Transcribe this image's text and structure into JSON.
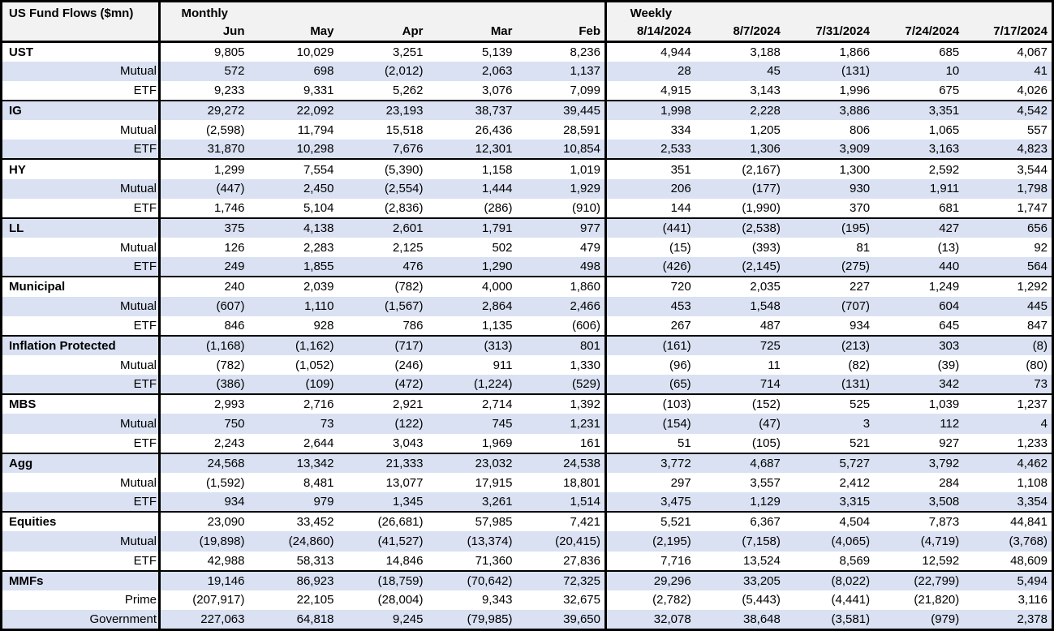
{
  "table": {
    "title": "US Fund Flows ($mn)",
    "monthly_label": "Monthly",
    "weekly_label": "Weekly",
    "monthly_columns": [
      "Jun",
      "May",
      "Apr",
      "Mar",
      "Feb"
    ],
    "weekly_columns": [
      "8/14/2024",
      "8/7/2024",
      "7/31/2024",
      "7/24/2024",
      "7/17/2024"
    ],
    "sections": [
      {
        "rows": [
          {
            "label": "UST",
            "monthly": [
              "9,805",
              "10,029",
              "3,251",
              "5,139",
              "8,236"
            ],
            "weekly": [
              "4,944",
              "3,188",
              "1,866",
              "685",
              "4,067"
            ]
          },
          {
            "label": "Mutual",
            "monthly": [
              "572",
              "698",
              "(2,012)",
              "2,063",
              "1,137"
            ],
            "weekly": [
              "28",
              "45",
              "(131)",
              "10",
              "41"
            ]
          },
          {
            "label": "ETF",
            "monthly": [
              "9,233",
              "9,331",
              "5,262",
              "3,076",
              "7,099"
            ],
            "weekly": [
              "4,915",
              "3,143",
              "1,996",
              "675",
              "4,026"
            ]
          }
        ]
      },
      {
        "rows": [
          {
            "label": "IG",
            "monthly": [
              "29,272",
              "22,092",
              "23,193",
              "38,737",
              "39,445"
            ],
            "weekly": [
              "1,998",
              "2,228",
              "3,886",
              "3,351",
              "4,542"
            ]
          },
          {
            "label": "Mutual",
            "monthly": [
              "(2,598)",
              "11,794",
              "15,518",
              "26,436",
              "28,591"
            ],
            "weekly": [
              "334",
              "1,205",
              "806",
              "1,065",
              "557"
            ]
          },
          {
            "label": "ETF",
            "monthly": [
              "31,870",
              "10,298",
              "7,676",
              "12,301",
              "10,854"
            ],
            "weekly": [
              "2,533",
              "1,306",
              "3,909",
              "3,163",
              "4,823"
            ]
          }
        ]
      },
      {
        "rows": [
          {
            "label": "HY",
            "monthly": [
              "1,299",
              "7,554",
              "(5,390)",
              "1,158",
              "1,019"
            ],
            "weekly": [
              "351",
              "(2,167)",
              "1,300",
              "2,592",
              "3,544"
            ]
          },
          {
            "label": "Mutual",
            "monthly": [
              "(447)",
              "2,450",
              "(2,554)",
              "1,444",
              "1,929"
            ],
            "weekly": [
              "206",
              "(177)",
              "930",
              "1,911",
              "1,798"
            ]
          },
          {
            "label": "ETF",
            "monthly": [
              "1,746",
              "5,104",
              "(2,836)",
              "(286)",
              "(910)"
            ],
            "weekly": [
              "144",
              "(1,990)",
              "370",
              "681",
              "1,747"
            ]
          }
        ]
      },
      {
        "rows": [
          {
            "label": "LL",
            "monthly": [
              "375",
              "4,138",
              "2,601",
              "1,791",
              "977"
            ],
            "weekly": [
              "(441)",
              "(2,538)",
              "(195)",
              "427",
              "656"
            ]
          },
          {
            "label": "Mutual",
            "monthly": [
              "126",
              "2,283",
              "2,125",
              "502",
              "479"
            ],
            "weekly": [
              "(15)",
              "(393)",
              "81",
              "(13)",
              "92"
            ]
          },
          {
            "label": "ETF",
            "monthly": [
              "249",
              "1,855",
              "476",
              "1,290",
              "498"
            ],
            "weekly": [
              "(426)",
              "(2,145)",
              "(275)",
              "440",
              "564"
            ]
          }
        ]
      },
      {
        "rows": [
          {
            "label": "Municipal",
            "monthly": [
              "240",
              "2,039",
              "(782)",
              "4,000",
              "1,860"
            ],
            "weekly": [
              "720",
              "2,035",
              "227",
              "1,249",
              "1,292"
            ]
          },
          {
            "label": "Mutual",
            "monthly": [
              "(607)",
              "1,110",
              "(1,567)",
              "2,864",
              "2,466"
            ],
            "weekly": [
              "453",
              "1,548",
              "(707)",
              "604",
              "445"
            ]
          },
          {
            "label": "ETF",
            "monthly": [
              "846",
              "928",
              "786",
              "1,135",
              "(606)"
            ],
            "weekly": [
              "267",
              "487",
              "934",
              "645",
              "847"
            ]
          }
        ]
      },
      {
        "rows": [
          {
            "label": "Inflation Protected",
            "monthly": [
              "(1,168)",
              "(1,162)",
              "(717)",
              "(313)",
              "801"
            ],
            "weekly": [
              "(161)",
              "725",
              "(213)",
              "303",
              "(8)"
            ]
          },
          {
            "label": "Mutual",
            "monthly": [
              "(782)",
              "(1,052)",
              "(246)",
              "911",
              "1,330"
            ],
            "weekly": [
              "(96)",
              "11",
              "(82)",
              "(39)",
              "(80)"
            ]
          },
          {
            "label": "ETF",
            "monthly": [
              "(386)",
              "(109)",
              "(472)",
              "(1,224)",
              "(529)"
            ],
            "weekly": [
              "(65)",
              "714",
              "(131)",
              "342",
              "73"
            ]
          }
        ]
      },
      {
        "rows": [
          {
            "label": "MBS",
            "monthly": [
              "2,993",
              "2,716",
              "2,921",
              "2,714",
              "1,392"
            ],
            "weekly": [
              "(103)",
              "(152)",
              "525",
              "1,039",
              "1,237"
            ]
          },
          {
            "label": "Mutual",
            "monthly": [
              "750",
              "73",
              "(122)",
              "745",
              "1,231"
            ],
            "weekly": [
              "(154)",
              "(47)",
              "3",
              "112",
              "4"
            ]
          },
          {
            "label": "ETF",
            "monthly": [
              "2,243",
              "2,644",
              "3,043",
              "1,969",
              "161"
            ],
            "weekly": [
              "51",
              "(105)",
              "521",
              "927",
              "1,233"
            ]
          }
        ]
      },
      {
        "rows": [
          {
            "label": "Agg",
            "monthly": [
              "24,568",
              "13,342",
              "21,333",
              "23,032",
              "24,538"
            ],
            "weekly": [
              "3,772",
              "4,687",
              "5,727",
              "3,792",
              "4,462"
            ]
          },
          {
            "label": "Mutual",
            "monthly": [
              "(1,592)",
              "8,481",
              "13,077",
              "17,915",
              "18,801"
            ],
            "weekly": [
              "297",
              "3,557",
              "2,412",
              "284",
              "1,108"
            ]
          },
          {
            "label": "ETF",
            "monthly": [
              "934",
              "979",
              "1,345",
              "3,261",
              "1,514"
            ],
            "weekly": [
              "3,475",
              "1,129",
              "3,315",
              "3,508",
              "3,354"
            ]
          }
        ]
      },
      {
        "rows": [
          {
            "label": "Equities",
            "monthly": [
              "23,090",
              "33,452",
              "(26,681)",
              "57,985",
              "7,421"
            ],
            "weekly": [
              "5,521",
              "6,367",
              "4,504",
              "7,873",
              "44,841"
            ]
          },
          {
            "label": "Mutual",
            "monthly": [
              "(19,898)",
              "(24,860)",
              "(41,527)",
              "(13,374)",
              "(20,415)"
            ],
            "weekly": [
              "(2,195)",
              "(7,158)",
              "(4,065)",
              "(4,719)",
              "(3,768)"
            ]
          },
          {
            "label": "ETF",
            "monthly": [
              "42,988",
              "58,313",
              "14,846",
              "71,360",
              "27,836"
            ],
            "weekly": [
              "7,716",
              "13,524",
              "8,569",
              "12,592",
              "48,609"
            ]
          }
        ]
      },
      {
        "rows": [
          {
            "label": "MMFs",
            "monthly": [
              "19,146",
              "86,923",
              "(18,759)",
              "(70,642)",
              "72,325"
            ],
            "weekly": [
              "29,296",
              "33,205",
              "(8,022)",
              "(22,799)",
              "5,494"
            ]
          },
          {
            "label": "Prime",
            "monthly": [
              "(207,917)",
              "22,105",
              "(28,004)",
              "9,343",
              "32,675"
            ],
            "weekly": [
              "(2,782)",
              "(5,443)",
              "(4,441)",
              "(21,820)",
              "3,116"
            ]
          },
          {
            "label": "Government",
            "monthly": [
              "227,063",
              "64,818",
              "9,245",
              "(79,985)",
              "39,650"
            ],
            "weekly": [
              "32,078",
              "38,648",
              "(3,581)",
              "(979)",
              "2,378"
            ]
          }
        ]
      }
    ],
    "colors": {
      "stripe": "#d9e1f2",
      "header_bg": "#f2f2f2",
      "border": "#000000",
      "background": "#ffffff",
      "text": "#000000"
    }
  }
}
